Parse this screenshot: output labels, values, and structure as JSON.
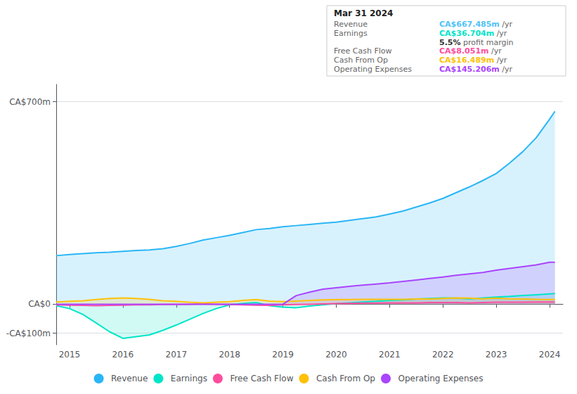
{
  "chart_data": {
    "type": "line",
    "annotation": {
      "title": "Mar 31 2024",
      "rows": [
        {
          "label": "Revenue",
          "value": "CA$667.485m",
          "unit": "/yr",
          "color": "#4fc3f7"
        },
        {
          "label": "Earnings",
          "value": "CA$36.704m",
          "unit": "/yr",
          "color": "#00e5c8"
        },
        {
          "value": "5.5%",
          "unit": "profit margin"
        },
        {
          "label": "Free Cash Flow",
          "value": "CA$8.051m",
          "unit": "/yr",
          "color": "#ff4d9e"
        },
        {
          "label": "Cash From Op",
          "value": "CA$16.489m",
          "unit": "/yr",
          "color": "#ffc107"
        },
        {
          "label": "Operating Expenses",
          "value": "CA$145.206m",
          "unit": "/yr",
          "color": "#aa44ff"
        }
      ]
    },
    "x": [
      2014.75,
      2015.0,
      2015.25,
      2015.5,
      2015.75,
      2016.0,
      2016.25,
      2016.5,
      2016.75,
      2017.0,
      2017.25,
      2017.5,
      2017.75,
      2018.0,
      2018.25,
      2018.5,
      2018.75,
      2019.0,
      2019.25,
      2019.5,
      2019.75,
      2020.0,
      2020.25,
      2020.5,
      2020.75,
      2021.0,
      2021.25,
      2021.5,
      2021.75,
      2022.0,
      2022.25,
      2022.5,
      2022.75,
      2023.0,
      2023.25,
      2023.5,
      2023.75,
      2024.0,
      2024.1
    ],
    "series": [
      {
        "name": "Revenue",
        "color": "#29b6f6",
        "values": [
          168,
          172,
          175,
          178,
          180,
          183,
          186,
          188,
          192,
          200,
          210,
          222,
          230,
          238,
          248,
          258,
          262,
          268,
          272,
          276,
          280,
          284,
          290,
          296,
          302,
          312,
          322,
          336,
          350,
          366,
          386,
          406,
          428,
          452,
          488,
          528,
          576,
          640,
          667
        ]
      },
      {
        "name": "Earnings",
        "color": "#00e5c8",
        "values": [
          -5,
          -15,
          -35,
          -65,
          -95,
          -118,
          -112,
          -106,
          -90,
          -72,
          -52,
          -32,
          -15,
          -2,
          3,
          6,
          -5,
          -10,
          -12,
          -6,
          -2,
          2,
          5,
          8,
          10,
          13,
          15,
          18,
          20,
          22,
          21,
          19,
          22,
          25,
          27,
          30,
          33,
          36,
          37
        ]
      },
      {
        "name": "Free Cash Flow",
        "color": "#ff4d9e",
        "values": [
          -2,
          -3,
          -4,
          -5,
          -4,
          -3,
          -2,
          -2,
          -1,
          -1,
          0,
          1,
          0,
          -1,
          -2,
          -3,
          -4,
          -2,
          -1,
          0,
          1,
          2,
          3,
          4,
          4,
          5,
          5,
          5,
          6,
          6,
          6,
          5,
          6,
          7,
          7,
          7,
          8,
          8,
          8
        ]
      },
      {
        "name": "Cash From Op",
        "color": "#ffc107",
        "values": [
          8,
          10,
          12,
          16,
          20,
          22,
          20,
          17,
          12,
          10,
          7,
          5,
          7,
          9,
          13,
          16,
          11,
          9,
          11,
          13,
          15,
          16,
          16,
          17,
          17,
          17,
          17,
          18,
          18,
          20,
          22,
          21,
          19,
          21,
          19,
          18,
          17,
          16,
          16
        ]
      },
      {
        "name": "Operating Expenses",
        "color": "#aa44ff",
        "values": [
          0,
          0,
          0,
          0,
          0,
          0,
          0,
          0,
          0,
          0,
          0,
          0,
          0,
          0,
          0,
          0,
          0,
          0,
          30,
          42,
          52,
          57,
          62,
          66,
          70,
          74,
          79,
          84,
          89,
          94,
          100,
          105,
          110,
          118,
          124,
          130,
          136,
          145,
          145
        ]
      }
    ],
    "xlim": [
      2014.75,
      2024.25
    ],
    "xticks": [
      2015,
      2016,
      2017,
      2018,
      2019,
      2020,
      2021,
      2022,
      2023,
      2024
    ],
    "ylim": [
      -140,
      760
    ],
    "yticks": [
      {
        "value": 700,
        "label": "CA$700m"
      },
      {
        "value": 0,
        "label": "CA$0"
      },
      {
        "value": -100,
        "label": "-CA$100m"
      }
    ],
    "grid": true,
    "legend": "bottom"
  }
}
